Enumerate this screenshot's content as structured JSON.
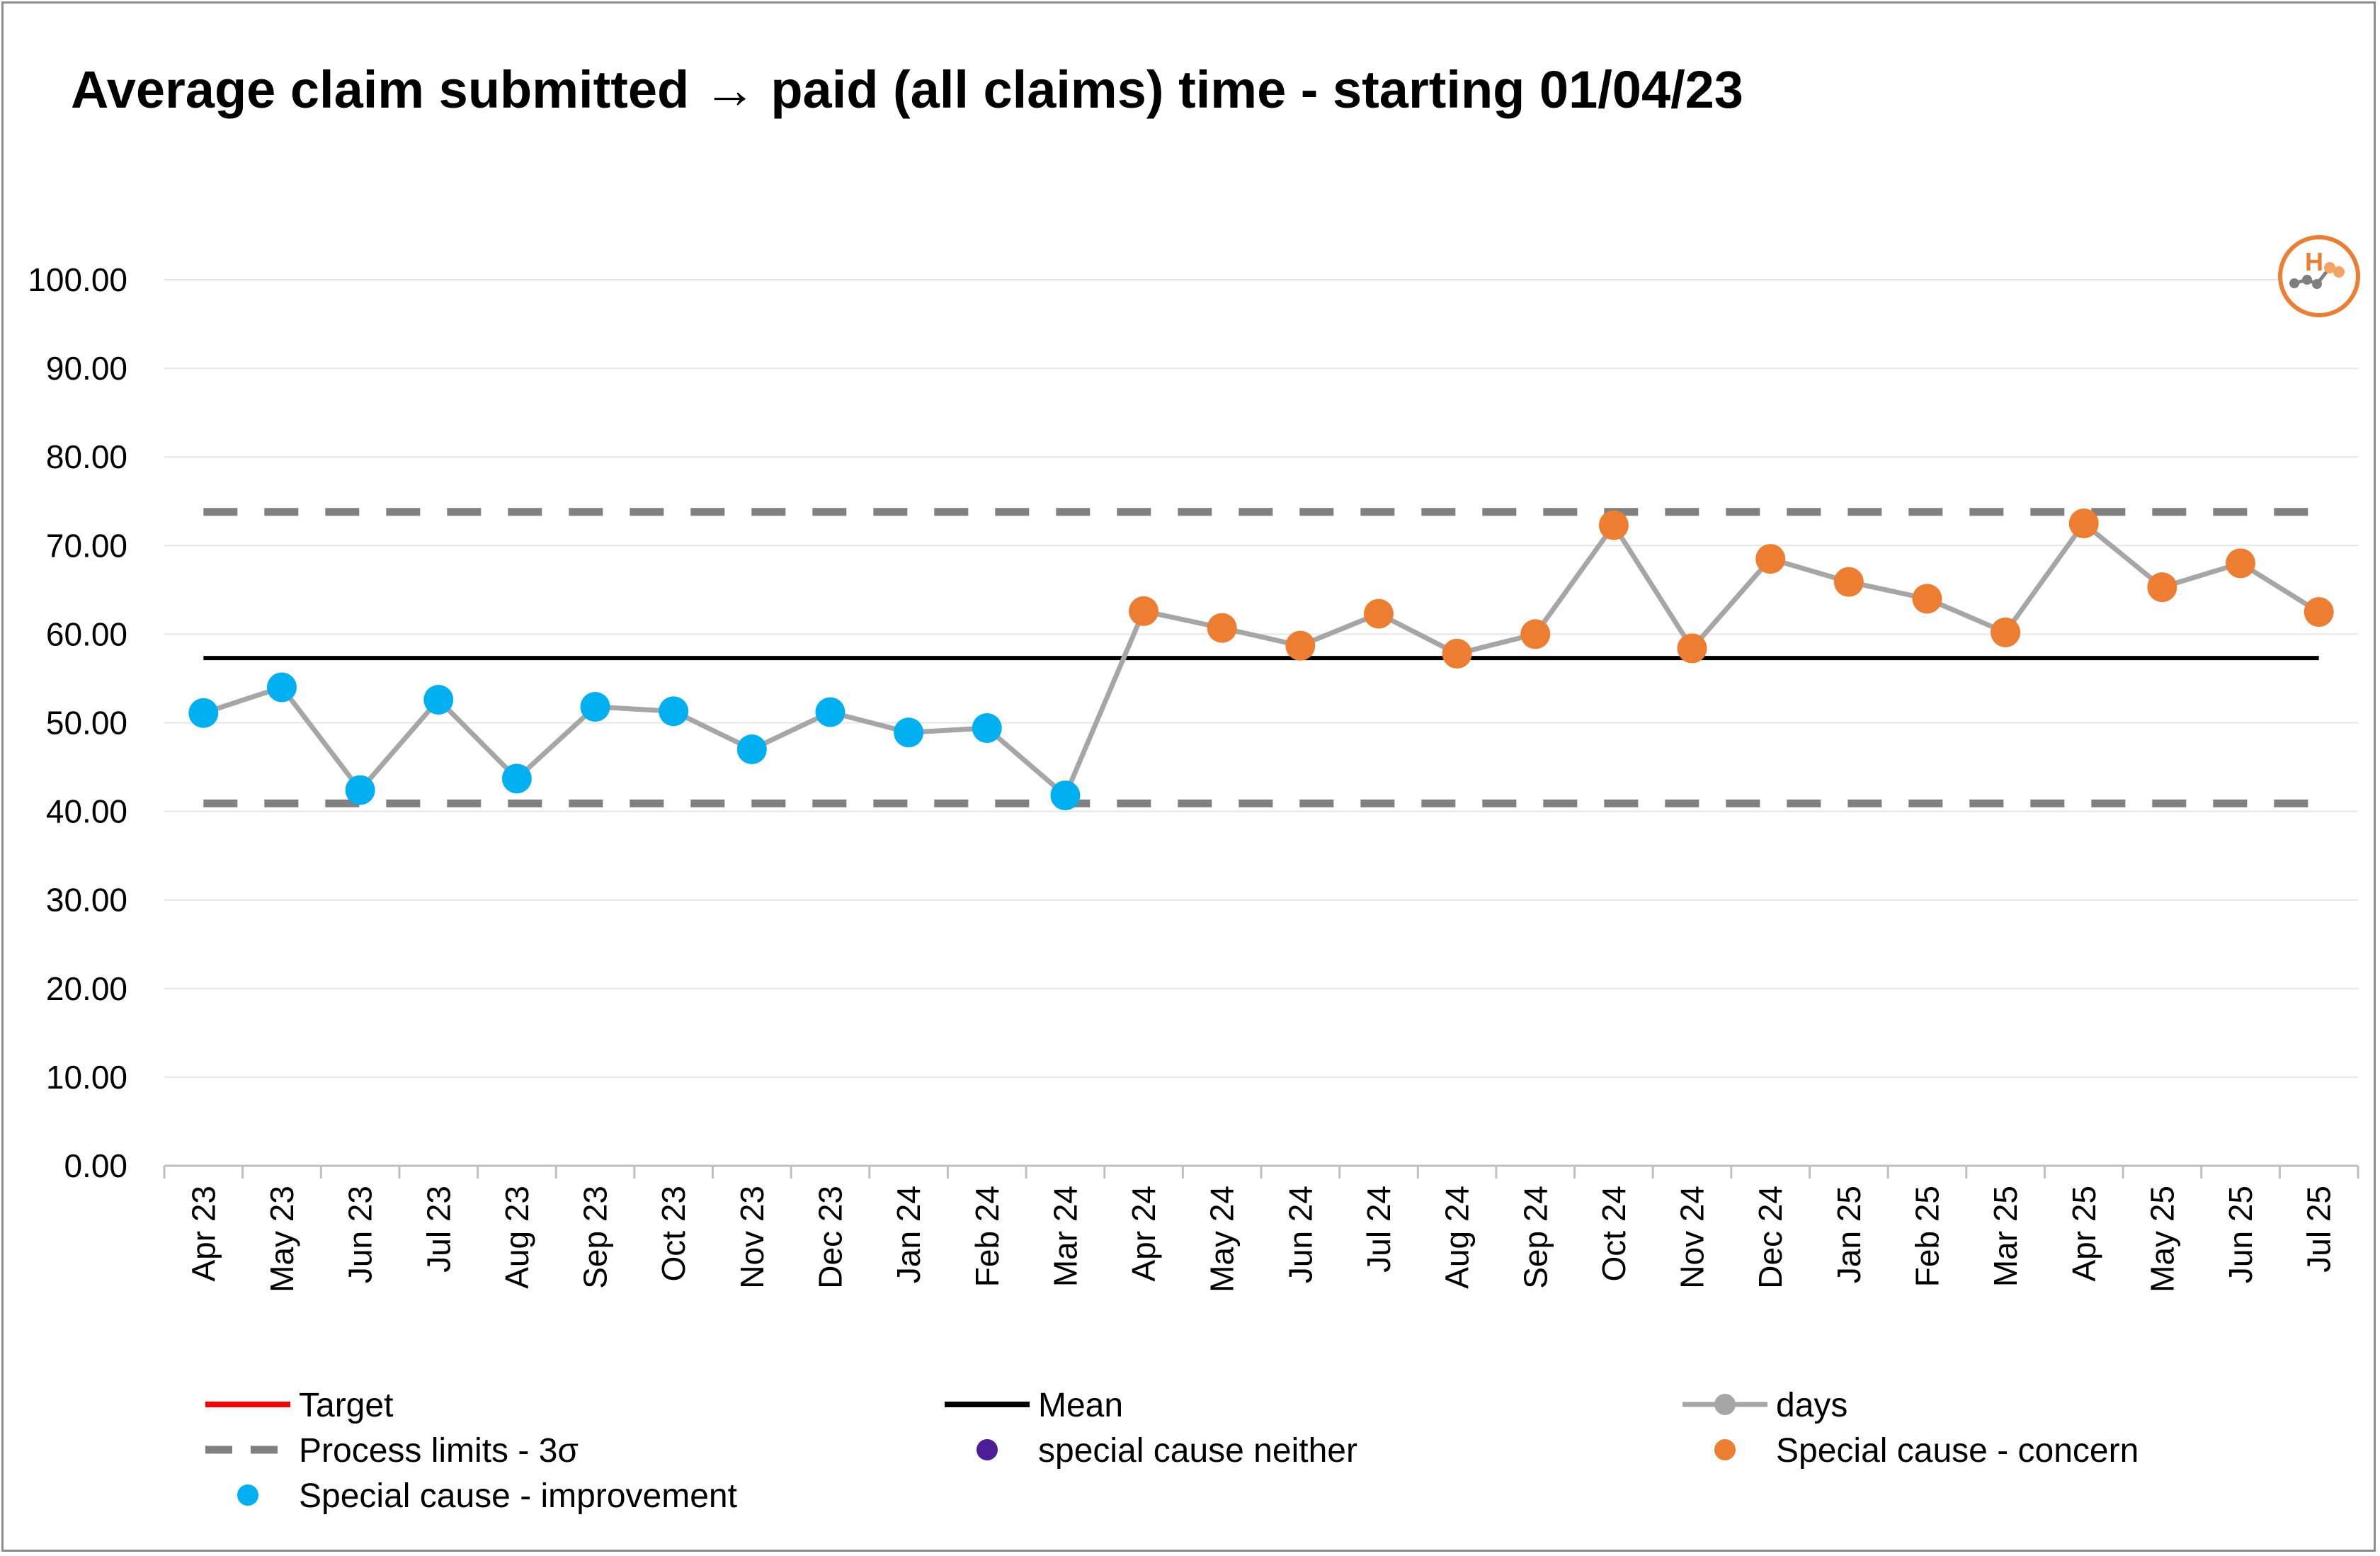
{
  "chart_data": {
    "type": "line",
    "title": "Average claim submitted → paid (all claims) time - starting 01/04/23",
    "xlabel": "",
    "ylabel": "",
    "ylim": [
      0,
      100
    ],
    "y_ticks": [
      "0.00",
      "10.00",
      "20.00",
      "30.00",
      "40.00",
      "50.00",
      "60.00",
      "70.00",
      "80.00",
      "90.00",
      "100.00"
    ],
    "categories": [
      "Apr 23",
      "May 23",
      "Jun 23",
      "Jul 23",
      "Aug 23",
      "Sep 23",
      "Oct 23",
      "Nov 23",
      "Dec 23",
      "Jan 24",
      "Feb 24",
      "Mar 24",
      "Apr 24",
      "May 24",
      "Jun 24",
      "Jul 24",
      "Aug 24",
      "Sep 24",
      "Oct 24",
      "Nov 24",
      "Dec 24",
      "Jan 25",
      "Feb 25",
      "Mar 25",
      "Apr 25",
      "May 25",
      "Jun 25",
      "Jul 25"
    ],
    "series": [
      {
        "name": "days",
        "color": "#a6a6a6",
        "values": [
          51.1,
          54.0,
          42.4,
          52.6,
          43.7,
          51.8,
          51.3,
          47.0,
          51.2,
          48.9,
          49.4,
          41.8,
          62.6,
          60.7,
          58.7,
          62.3,
          57.8,
          60.0,
          72.3,
          58.4,
          68.5,
          65.9,
          64.0,
          60.2,
          72.5,
          65.3,
          68.0,
          62.5
        ]
      },
      {
        "name": "Mean",
        "color": "#000000",
        "value": 57.3
      },
      {
        "name": "Process limits - 3σ",
        "color": "#808080",
        "upper": 73.8,
        "lower": 40.9
      },
      {
        "name": "Target",
        "color": "#ff0000"
      }
    ],
    "point_status": [
      "improvement",
      "improvement",
      "improvement",
      "improvement",
      "improvement",
      "improvement",
      "improvement",
      "improvement",
      "improvement",
      "improvement",
      "improvement",
      "improvement",
      "concern",
      "concern",
      "concern",
      "concern",
      "concern",
      "concern",
      "concern",
      "concern",
      "concern",
      "concern",
      "concern",
      "concern",
      "concern",
      "concern",
      "concern",
      "concern"
    ],
    "status_colors": {
      "improvement": "#00b0f0",
      "concern": "#ed7d31",
      "neither": "#4b1e96"
    },
    "grid": true,
    "legend_position": "bottom",
    "legend": [
      {
        "key": "target",
        "label": "Target",
        "style": "line",
        "color": "#ff0000"
      },
      {
        "key": "mean",
        "label": "Mean",
        "style": "line",
        "color": "#000000"
      },
      {
        "key": "days",
        "label": "days",
        "style": "line-marker",
        "color": "#a6a6a6"
      },
      {
        "key": "limits",
        "label": "Process limits - 3σ",
        "style": "dashed",
        "color": "#808080"
      },
      {
        "key": "neither",
        "label": "special cause neither",
        "style": "marker",
        "color": "#4b1e96"
      },
      {
        "key": "concern",
        "label": "Special cause - concern",
        "style": "marker",
        "color": "#ed7d31"
      },
      {
        "key": "improvement",
        "label": "Special cause  - improvement",
        "style": "marker",
        "color": "#00b0f0"
      }
    ]
  },
  "logo": {
    "letter": "H",
    "color": "#ed7d31"
  }
}
